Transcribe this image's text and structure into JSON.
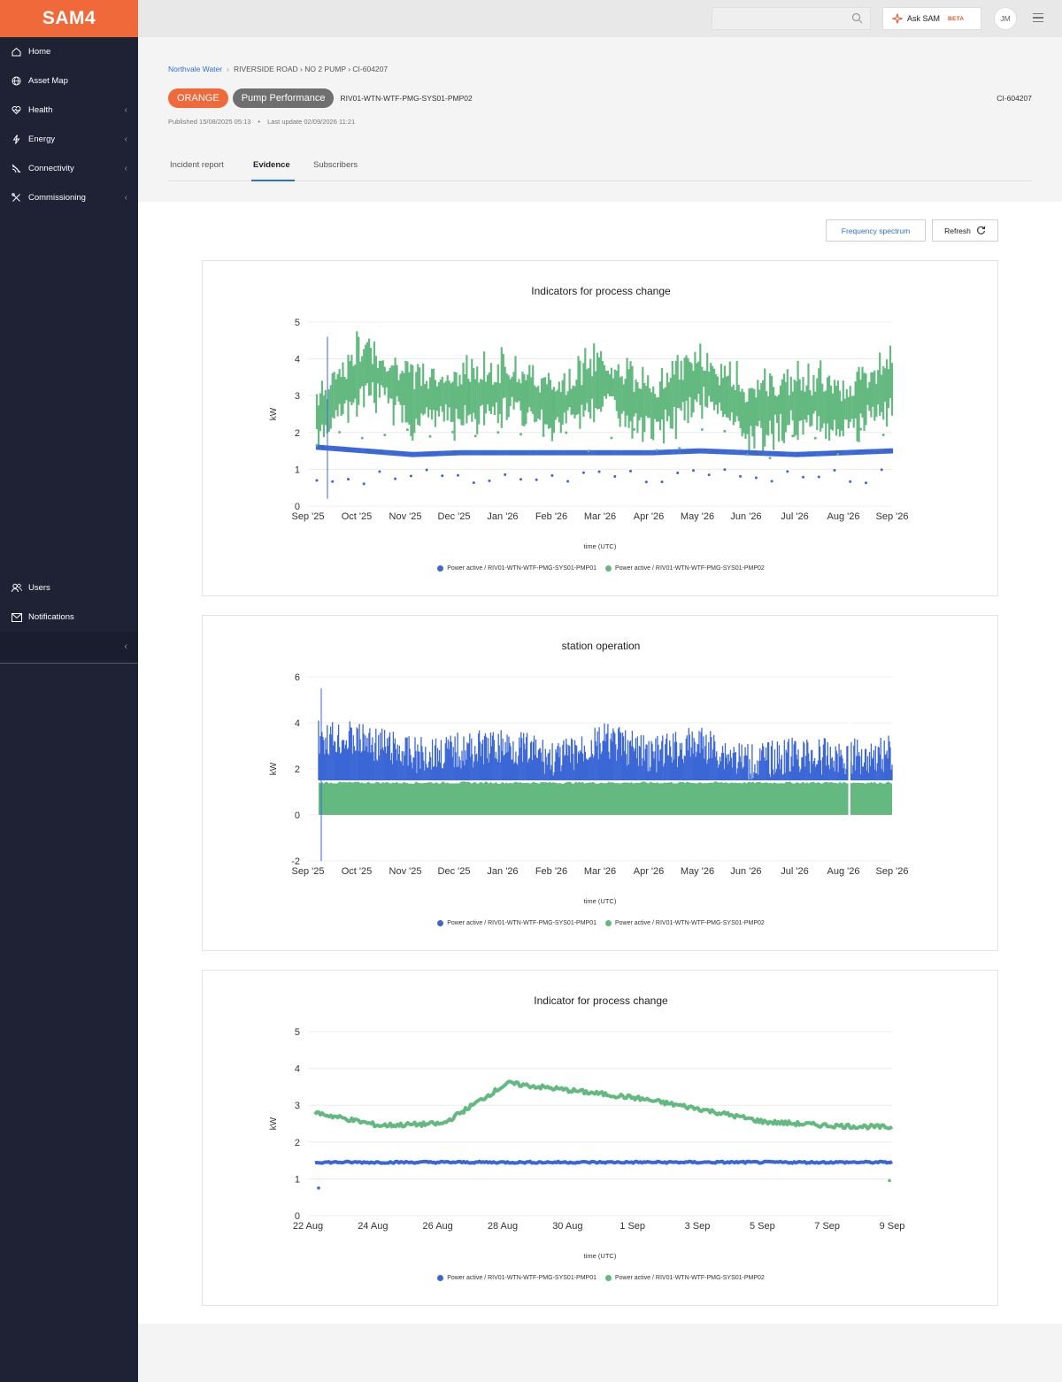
{
  "app": {
    "logo": "SAM4"
  },
  "sidebar": {
    "items": [
      {
        "label": "Home",
        "icon": "home-icon"
      },
      {
        "label": "Asset Map",
        "icon": "globe-icon"
      },
      {
        "label": "Health",
        "icon": "heart-pulse-icon",
        "expandable": true
      },
      {
        "label": "Energy",
        "icon": "bolt-icon",
        "expandable": true
      },
      {
        "label": "Connectivity",
        "icon": "signal-icon",
        "expandable": true
      },
      {
        "label": "Commissioning",
        "icon": "tools-icon",
        "expandable": true
      }
    ],
    "bottom_items": [
      {
        "label": "Users",
        "icon": "users-icon"
      },
      {
        "label": "Notifications",
        "icon": "mail-icon"
      }
    ]
  },
  "topbar": {
    "search_placeholder": "",
    "ask_sam": {
      "label": "Ask SAM",
      "badge": "BETA"
    },
    "avatar_initials": "JM"
  },
  "header": {
    "breadcrumb": {
      "link": "Northvale Water",
      "rest": "RIVERSIDE ROAD › NO 2 PUMP › CI-604207"
    },
    "status_badge": "ORANGE",
    "category_badge": "Pump Performance",
    "asset_id": "RIV01-WTN-WTF-PMG-SYS01-PMP02",
    "ci_id": "CI-604207",
    "published": "Published 15/08/2025 05:13",
    "last_update": "Last update 02/09/2026 11:21",
    "tabs": [
      "Incident report",
      "Evidence",
      "Subscribers"
    ],
    "active_tab": "Evidence"
  },
  "actions": {
    "frequency": "Frequency spectrum",
    "refresh": "Refresh"
  },
  "colors": {
    "series1": "#3b67d6",
    "series2": "#63b97f",
    "accent": "#f0693b",
    "link": "#2f6fcf"
  },
  "chart_data": [
    {
      "type": "scatter",
      "title": "Indicators for process change",
      "xlabel": "time (UTC)",
      "ylabel": "kW",
      "ylim": [
        0,
        5
      ],
      "yticks": [
        "0",
        "1",
        "2",
        "3",
        "4",
        "5"
      ],
      "xticks": [
        "Sep '25",
        "Oct '25",
        "Nov '25",
        "Dec '25",
        "Jan '26",
        "Feb '26",
        "Mar '26",
        "Apr '26",
        "May '26",
        "Jun '26",
        "Jul '26",
        "Aug '26",
        "Sep '26"
      ],
      "grid": true,
      "legend": "bottom",
      "series": [
        {
          "name": "Power active / RIV01-WTN-WTF-PMG-SYS01-PMP01",
          "values": [
            1.6,
            1.5,
            1.4,
            1.45,
            1.45,
            1.45,
            1.45,
            1.45,
            1.5,
            1.45,
            1.4,
            1.45,
            1.5
          ]
        },
        {
          "name": "Power active / RIV01-WTN-WTF-PMG-SYS01-PMP02",
          "values": [
            2.4,
            3.8,
            2.9,
            3.0,
            3.2,
            2.7,
            3.4,
            2.6,
            3.5,
            2.5,
            2.9,
            2.6,
            3.3
          ]
        }
      ]
    },
    {
      "type": "area",
      "title": "station operation",
      "xlabel": "time (UTC)",
      "ylabel": "kW",
      "ylim": [
        -2,
        6
      ],
      "yticks": [
        "-2",
        "0",
        "2",
        "4",
        "6"
      ],
      "xticks": [
        "Sep '25",
        "Oct '25",
        "Nov '25",
        "Dec '25",
        "Jan '26",
        "Feb '26",
        "Mar '26",
        "Apr '26",
        "May '26",
        "Jun '26",
        "Jul '26",
        "Aug '26",
        "Sep '26"
      ],
      "grid": true,
      "legend": "bottom",
      "series": [
        {
          "name": "Power active / RIV01-WTN-WTF-PMG-SYS01-PMP01",
          "values": [
            4.2,
            4.0,
            3.4,
            3.6,
            3.8,
            3.2,
            4.0,
            3.4,
            3.9,
            3.1,
            3.4,
            3.3,
            3.5
          ]
        },
        {
          "name": "Power active / RIV01-WTN-WTF-PMG-SYS01-PMP02",
          "values": [
            1.4,
            1.4,
            1.4,
            1.4,
            1.4,
            1.4,
            1.4,
            1.4,
            1.4,
            1.4,
            1.4,
            1.4,
            1.4
          ]
        }
      ]
    },
    {
      "type": "line",
      "title": "Indicator for process change",
      "xlabel": "time (UTC)",
      "ylabel": "kW",
      "ylim": [
        0,
        5
      ],
      "yticks": [
        "0",
        "1",
        "2",
        "3",
        "4",
        "5"
      ],
      "xticks": [
        "22 Aug",
        "24 Aug",
        "26 Aug",
        "28 Aug",
        "30 Aug",
        "1 Sep",
        "3 Sep",
        "5 Sep",
        "7 Sep",
        "9 Sep"
      ],
      "grid": true,
      "legend": "bottom",
      "series": [
        {
          "name": "Power active / RIV01-WTN-WTF-PMG-SYS01-PMP01",
          "values": [
            1.45,
            1.45,
            1.45,
            1.45,
            1.45,
            1.45,
            1.45,
            1.45,
            1.45,
            1.45
          ]
        },
        {
          "name": "Power active / RIV01-WTN-WTF-PMG-SYS01-PMP02",
          "values": [
            2.8,
            2.45,
            2.5,
            3.6,
            3.4,
            3.2,
            2.9,
            2.55,
            2.45,
            2.4
          ]
        }
      ]
    }
  ]
}
